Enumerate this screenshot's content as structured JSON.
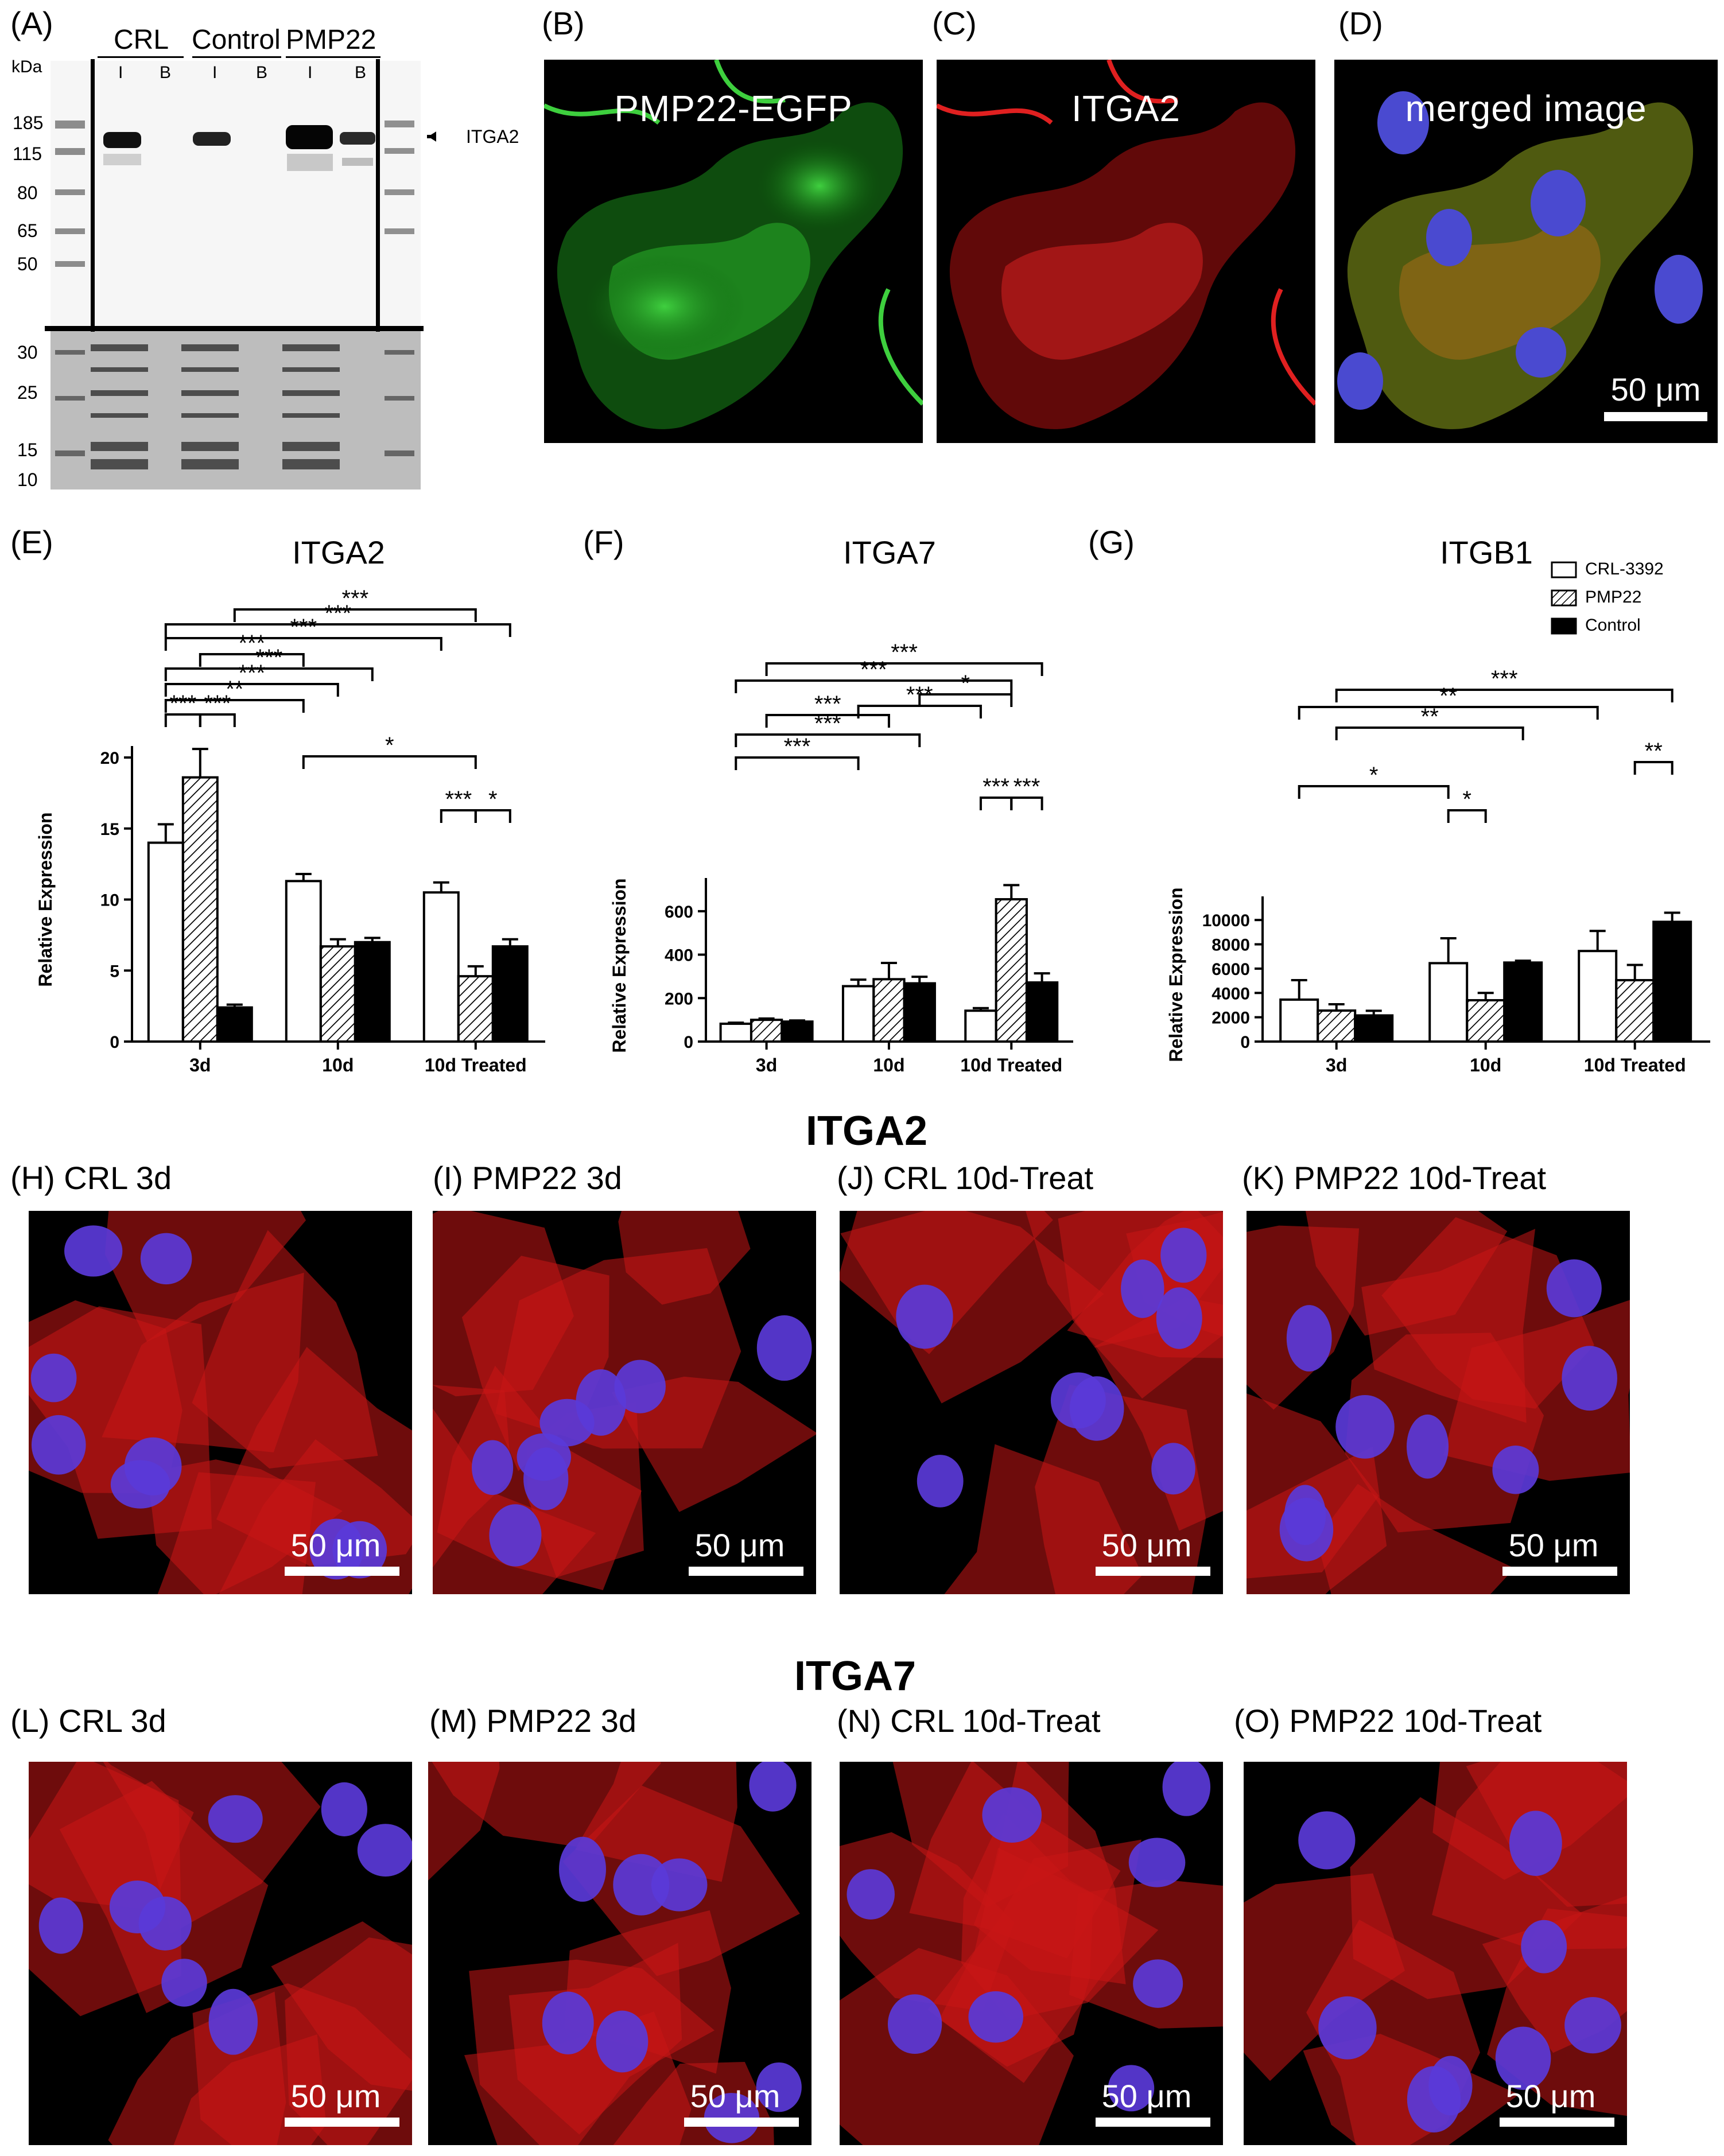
{
  "panel_labels": {
    "A": "(A)",
    "B": "(B)",
    "C": "(C)",
    "D": "(D)",
    "E": "(E)",
    "F": "(F)",
    "G": "(G)"
  },
  "blot": {
    "kda_label": "kDa",
    "group_labels": [
      "CRL",
      "Control",
      "PMP22"
    ],
    "lane_labels": [
      "I",
      "B",
      "I",
      "B",
      "I",
      "B"
    ],
    "ladder_top": [
      "185",
      "115",
      "80",
      "65",
      "50"
    ],
    "ladder_bottom": [
      "30",
      "25",
      "15",
      "10"
    ],
    "band_label": "ITGA2"
  },
  "confocal_top": [
    {
      "label": "(B)",
      "title": "PMP22-EGFP",
      "color": "green"
    },
    {
      "label": "(C)",
      "title": "ITGA2",
      "color": "red"
    },
    {
      "label": "(D)",
      "title": "merged image",
      "color": "merged",
      "scale": "50 μm"
    }
  ],
  "chart_legend": [
    "CRL-3392",
    "PMP22",
    "Control"
  ],
  "chart_data": [
    {
      "type": "bar",
      "title": "ITGA2",
      "ylabel": "Relative Expression",
      "categories": [
        "3d",
        "10d",
        "10d Treated"
      ],
      "ylim": [
        0,
        20
      ],
      "yticks": [
        "0",
        "5",
        "10",
        "15",
        "20"
      ],
      "series": [
        {
          "name": "CRL-3392",
          "values": [
            14.0,
            11.3,
            10.5
          ],
          "errors": [
            1.3,
            0.5,
            0.7
          ]
        },
        {
          "name": "PMP22",
          "values": [
            18.6,
            6.7,
            4.6
          ],
          "errors": [
            2.0,
            0.5,
            0.7
          ]
        },
        {
          "name": "Control",
          "values": [
            2.4,
            7.0,
            6.7
          ],
          "errors": [
            0.2,
            0.3,
            0.5
          ]
        }
      ],
      "significance": [
        "***",
        "***",
        "**",
        "***",
        "***",
        "***",
        "***",
        "***",
        "***",
        "*",
        "***",
        "*"
      ]
    },
    {
      "type": "bar",
      "title": "ITGA7",
      "ylabel": "Relative Expression",
      "categories": [
        "3d",
        "10d",
        "10d Treated"
      ],
      "ylim": [
        0,
        700
      ],
      "yticks": [
        "0",
        "200",
        "400",
        "600"
      ],
      "series": [
        {
          "name": "CRL-3392",
          "values": [
            82,
            255,
            142
          ],
          "errors": [
            5,
            30,
            12
          ]
        },
        {
          "name": "PMP22",
          "values": [
            100,
            287,
            655
          ],
          "errors": [
            6,
            75,
            65
          ]
        },
        {
          "name": "Control",
          "values": [
            92,
            268,
            272
          ],
          "errors": [
            5,
            30,
            42
          ]
        }
      ],
      "significance": [
        "***",
        "***",
        "***",
        "***",
        "*",
        "***",
        "***",
        "***",
        "***"
      ]
    },
    {
      "type": "bar",
      "title": "ITGB1",
      "ylabel": "Relative Expression",
      "categories": [
        "3d",
        "10d",
        "10d Treated"
      ],
      "ylim": [
        0,
        11000
      ],
      "yticks": [
        "0",
        "2000",
        "4000",
        "6000",
        "8000",
        "10000"
      ],
      "series": [
        {
          "name": "CRL-3392",
          "values": [
            3450,
            6450,
            7450
          ],
          "errors": [
            1600,
            2050,
            1650
          ]
        },
        {
          "name": "PMP22",
          "values": [
            2550,
            3400,
            5050
          ],
          "errors": [
            520,
            600,
            1250
          ]
        },
        {
          "name": "Control",
          "values": [
            2150,
            6500,
            9850
          ],
          "errors": [
            380,
            150,
            750
          ]
        }
      ],
      "significance": [
        "*",
        "*",
        "**",
        "**",
        "***",
        "**"
      ]
    }
  ],
  "itga2_section": {
    "heading": "ITGA2",
    "panels": [
      {
        "label": "(H) CRL 3d",
        "scale": "50 μm"
      },
      {
        "label": "(I) PMP22 3d",
        "scale": "50 μm"
      },
      {
        "label": "(J) CRL 10d-Treat",
        "scale": "50 μm"
      },
      {
        "label": "(K) PMP22 10d-Treat",
        "scale": "50 μm"
      }
    ]
  },
  "itga7_section": {
    "heading": "ITGA7",
    "panels": [
      {
        "label": "(L) CRL 3d",
        "scale": "50 μm"
      },
      {
        "label": "(M) PMP22 3d",
        "scale": "50 μm"
      },
      {
        "label": "(N) CRL 10d-Treat",
        "scale": "50 μm"
      },
      {
        "label": "(O) PMP22 10d-Treat",
        "scale": "50 μm"
      }
    ]
  }
}
